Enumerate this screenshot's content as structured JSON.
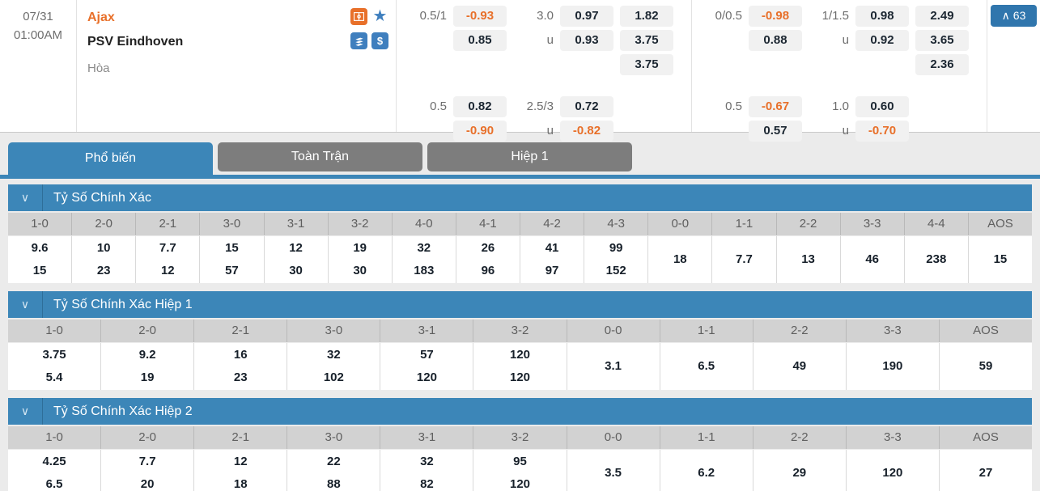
{
  "colors": {
    "accent_blue": "#3c86b8",
    "accent_orange": "#e8702a",
    "chip_bg": "#f1f1f1",
    "tab_gray": "#7d7d7d",
    "btn_blue": "#3076ad"
  },
  "match": {
    "date": "07/31",
    "time": "01:00AM",
    "home_team": "Ajax",
    "away_team": "PSV Eindhoven",
    "draw_label": "Hòa",
    "u_label": "u",
    "star_glyph": "★",
    "dollar_glyph": "$",
    "expand_caret": "∧",
    "expand_count": "63",
    "groups": [
      {
        "hc_line": "0.5/1",
        "hc_home": "-0.93",
        "hc_away": "0.85",
        "ou_line": "3.0",
        "ou_over": "0.97",
        "ou_under": "0.93",
        "x12": [
          "1.82",
          "3.75",
          "3.75"
        ],
        "hc2_line": "0.5",
        "hc2_home": "0.82",
        "hc2_away": "-0.90",
        "ou2_line": "2.5/3",
        "ou2_over": "0.72",
        "ou2_under": "-0.82"
      },
      {
        "hc_line": "0/0.5",
        "hc_home": "-0.98",
        "hc_away": "0.88",
        "ou_line": "1/1.5",
        "ou_over": "0.98",
        "ou_under": "0.92",
        "x12": [
          "2.49",
          "3.65",
          "2.36"
        ],
        "hc2_line": "0.5",
        "hc2_home": "-0.67",
        "hc2_away": "0.57",
        "ou2_line": "1.0",
        "ou2_over": "0.60",
        "ou2_under": "-0.70"
      }
    ]
  },
  "tabs": [
    {
      "label": "Phổ biến",
      "active": true
    },
    {
      "label": "Toàn Trận",
      "active": false
    },
    {
      "label": "Hiệp 1",
      "active": false
    }
  ],
  "section_chevron": "∨",
  "sections": [
    {
      "title": "Tỷ Số Chính Xác",
      "columns": [
        {
          "score": "1-0",
          "odds": [
            "9.6",
            "15"
          ]
        },
        {
          "score": "2-0",
          "odds": [
            "10",
            "23"
          ]
        },
        {
          "score": "2-1",
          "odds": [
            "7.7",
            "12"
          ]
        },
        {
          "score": "3-0",
          "odds": [
            "15",
            "57"
          ]
        },
        {
          "score": "3-1",
          "odds": [
            "12",
            "30"
          ]
        },
        {
          "score": "3-2",
          "odds": [
            "19",
            "30"
          ]
        },
        {
          "score": "4-0",
          "odds": [
            "32",
            "183"
          ]
        },
        {
          "score": "4-1",
          "odds": [
            "26",
            "96"
          ]
        },
        {
          "score": "4-2",
          "odds": [
            "41",
            "97"
          ]
        },
        {
          "score": "4-3",
          "odds": [
            "99",
            "152"
          ]
        },
        {
          "score": "0-0",
          "odds": [
            "18"
          ]
        },
        {
          "score": "1-1",
          "odds": [
            "7.7"
          ]
        },
        {
          "score": "2-2",
          "odds": [
            "13"
          ]
        },
        {
          "score": "3-3",
          "odds": [
            "46"
          ]
        },
        {
          "score": "4-4",
          "odds": [
            "238"
          ]
        },
        {
          "score": "AOS",
          "odds": [
            "15"
          ]
        }
      ]
    },
    {
      "title": "Tỷ Số Chính Xác Hiệp 1",
      "columns": [
        {
          "score": "1-0",
          "odds": [
            "3.75",
            "5.4"
          ]
        },
        {
          "score": "2-0",
          "odds": [
            "9.2",
            "19"
          ]
        },
        {
          "score": "2-1",
          "odds": [
            "16",
            "23"
          ]
        },
        {
          "score": "3-0",
          "odds": [
            "32",
            "102"
          ]
        },
        {
          "score": "3-1",
          "odds": [
            "57",
            "120"
          ]
        },
        {
          "score": "3-2",
          "odds": [
            "120",
            "120"
          ]
        },
        {
          "score": "0-0",
          "odds": [
            "3.1"
          ]
        },
        {
          "score": "1-1",
          "odds": [
            "6.5"
          ]
        },
        {
          "score": "2-2",
          "odds": [
            "49"
          ]
        },
        {
          "score": "3-3",
          "odds": [
            "190"
          ]
        },
        {
          "score": "AOS",
          "odds": [
            "59"
          ]
        }
      ]
    },
    {
      "title": "Tỷ Số Chính Xác Hiệp 2",
      "columns": [
        {
          "score": "1-0",
          "odds": [
            "4.25",
            "6.5"
          ]
        },
        {
          "score": "2-0",
          "odds": [
            "7.7",
            "20"
          ]
        },
        {
          "score": "2-1",
          "odds": [
            "12",
            "18"
          ]
        },
        {
          "score": "3-0",
          "odds": [
            "22",
            "88"
          ]
        },
        {
          "score": "3-1",
          "odds": [
            "32",
            "82"
          ]
        },
        {
          "score": "3-2",
          "odds": [
            "95",
            "120"
          ]
        },
        {
          "score": "0-0",
          "odds": [
            "3.5"
          ]
        },
        {
          "score": "1-1",
          "odds": [
            "6.2"
          ]
        },
        {
          "score": "2-2",
          "odds": [
            "29"
          ]
        },
        {
          "score": "3-3",
          "odds": [
            "120"
          ]
        },
        {
          "score": "AOS",
          "odds": [
            "27"
          ]
        }
      ]
    }
  ]
}
